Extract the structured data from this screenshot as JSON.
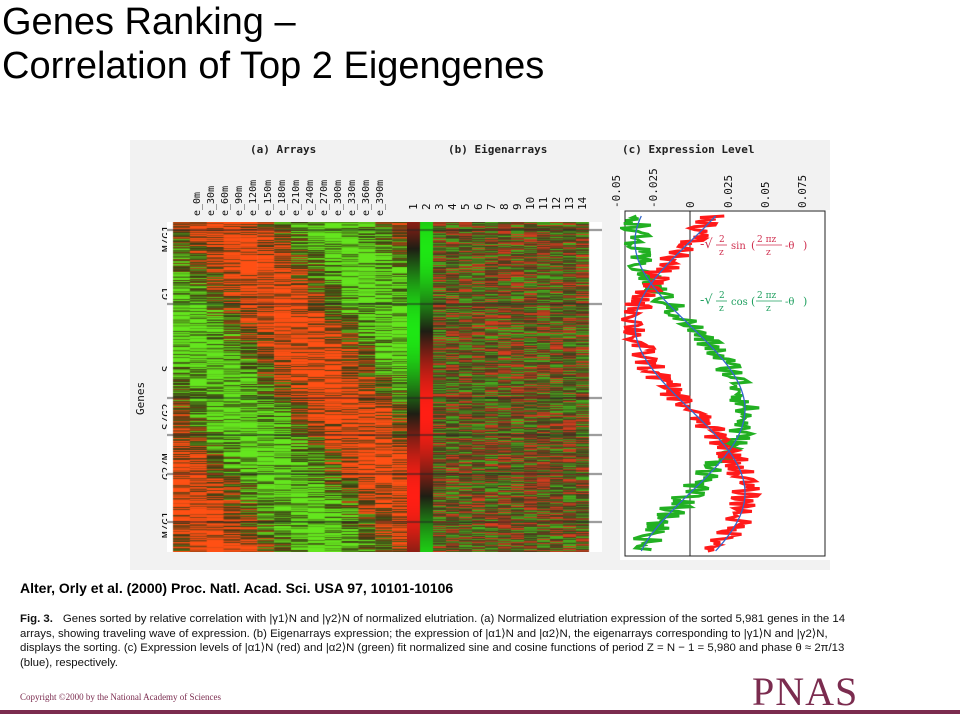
{
  "slide": {
    "title_line1": "Genes Ranking –",
    "title_line2": "Correlation of Top 2 Eigengenes"
  },
  "figure": {
    "panel_a_title": "(a) Arrays",
    "panel_b_title": "(b) Eigenarrays",
    "panel_c_title": "(c) Expression Level",
    "arrays": [
      "e_0m",
      "e_30m",
      "e_60m",
      "e_90m",
      "e_120m",
      "e_150m",
      "e_180m",
      "e_210m",
      "e_240m",
      "e_270m",
      "e_300m",
      "e_330m",
      "e_360m",
      "e_390m"
    ],
    "eigenarrays": [
      "1",
      "2",
      "3",
      "4",
      "5",
      "6",
      "7",
      "8",
      "9",
      "10",
      "11",
      "12",
      "13",
      "14"
    ],
    "expression_ticks": [
      "-0.05",
      "-0.025",
      "0",
      "0.025",
      "0.05",
      "0.075"
    ],
    "phases": [
      "M/G1",
      "G1",
      "S",
      "S/G2",
      "G2/M",
      "M/G1"
    ],
    "genes_label": "Genes",
    "formula_sin": "sin",
    "formula_cos": "cos",
    "formula_two": "2",
    "formula_z": "z",
    "formula_two_pi_z": "2 πz",
    "formula_theta": "-θ",
    "colors": {
      "red": "#ff1a1a",
      "green": "#22b022",
      "blue": "#3366cc",
      "formula_red": "#d03050",
      "formula_green": "#20a060"
    }
  },
  "citation": "Alter, Orly et al. (2000) Proc. Natl. Acad. Sci. USA 97, 10101-10106",
  "caption": {
    "label": "Fig. 3.",
    "text": "Genes sorted by relative correlation with |γ1⟩N and |γ2⟩N of normalized elutriation. (a) Normalized elutriation expression of the sorted 5,981 genes in the 14 arrays, showing traveling wave of expression. (b) Eigenarrays expression; the expression of |α1⟩N and |α2⟩N, the eigenarrays corresponding to |γ1⟩N and |γ2⟩N, displays the sorting. (c) Expression levels of |α1⟩N (red) and |α2⟩N (green) fit normalized sine and cosine functions of period Z = N − 1 = 5,980 and phase θ ≈ 2π/13 (blue), respectively."
  },
  "copyright": "Copyright ©2000 by the National Academy of Sciences",
  "logo": "PNAS"
}
